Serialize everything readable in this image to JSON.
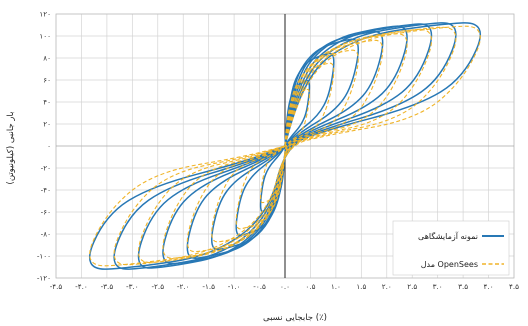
{
  "chart_data": {
    "type": "line",
    "title": "",
    "xlabel": "جابجایی نسبی (٪)",
    "ylabel": "بار جانبی (کیلونیوتن)",
    "xlim": [
      -4.5,
      4.5
    ],
    "ylim": [
      -120,
      120
    ],
    "x_ticks": [
      {
        "value": -4.5,
        "label": "-۴.۵"
      },
      {
        "value": -4.0,
        "label": "-۴.۰"
      },
      {
        "value": -3.5,
        "label": "-۳.۵"
      },
      {
        "value": -3.0,
        "label": "-۳.۰"
      },
      {
        "value": -2.5,
        "label": "-۲.۵"
      },
      {
        "value": -2.0,
        "label": "-۲.۰"
      },
      {
        "value": -1.5,
        "label": "-۱.۵"
      },
      {
        "value": -1.0,
        "label": "-۱.۰"
      },
      {
        "value": -0.5,
        "label": "-۰.۵"
      },
      {
        "value": 0.0,
        "label": "۰.۰"
      },
      {
        "value": 0.5,
        "label": "۰.۵"
      },
      {
        "value": 1.0,
        "label": "۱.۰"
      },
      {
        "value": 1.5,
        "label": "۱.۵"
      },
      {
        "value": 2.0,
        "label": "۲.۰"
      },
      {
        "value": 2.5,
        "label": "۲.۵"
      },
      {
        "value": 3.0,
        "label": "۳.۰"
      },
      {
        "value": 3.5,
        "label": "۳.۵"
      },
      {
        "value": 4.0,
        "label": "۴.۰"
      },
      {
        "value": 4.5,
        "label": "۴.۵"
      }
    ],
    "y_ticks": [
      {
        "value": 120,
        "label": "۱۲۰"
      },
      {
        "value": 100,
        "label": "۱۰۰"
      },
      {
        "value": 80,
        "label": "۸۰"
      },
      {
        "value": 60,
        "label": "۶۰"
      },
      {
        "value": 40,
        "label": "۴۰"
      },
      {
        "value": 20,
        "label": "۲۰"
      },
      {
        "value": 0,
        "label": "۰"
      },
      {
        "value": -20,
        "label": "-۲۰"
      },
      {
        "value": -40,
        "label": "-۴۰"
      },
      {
        "value": -60,
        "label": "-۶۰"
      },
      {
        "value": -80,
        "label": "-۸۰"
      },
      {
        "value": -100,
        "label": "-۱۰۰"
      },
      {
        "value": -120,
        "label": "-۱۲۰"
      }
    ],
    "grid": true,
    "legend_position": "bottom-right",
    "series": [
      {
        "name": "نمونه آزمایشگاهی",
        "color": "#2878b5",
        "style": "solid",
        "loops": [
          {
            "amp_pos": 0.5,
            "amp_neg": -0.5,
            "peak_pos": 60,
            "peak_neg": -60
          },
          {
            "amp_pos": 1.0,
            "amp_neg": -1.0,
            "peak_pos": 85,
            "peak_neg": -82
          },
          {
            "amp_pos": 1.5,
            "amp_neg": -1.5,
            "peak_pos": 98,
            "peak_neg": -95
          },
          {
            "amp_pos": 2.0,
            "amp_neg": -2.0,
            "peak_pos": 105,
            "peak_neg": -103
          },
          {
            "amp_pos": 2.5,
            "amp_neg": -2.5,
            "peak_pos": 110,
            "peak_neg": -108
          },
          {
            "amp_pos": 3.0,
            "amp_neg": -3.0,
            "peak_pos": 112,
            "peak_neg": -112
          },
          {
            "amp_pos": 3.5,
            "amp_neg": -3.5,
            "peak_pos": 113,
            "peak_neg": -113
          },
          {
            "amp_pos": 4.0,
            "amp_neg": -4.0,
            "peak_pos": 113,
            "peak_neg": -113
          }
        ]
      },
      {
        "name": "مدل OpenSees",
        "color": "#f0b429",
        "style": "dashed",
        "loops": [
          {
            "amp_pos": 0.5,
            "amp_neg": -0.5,
            "peak_pos": 52,
            "peak_neg": -52
          },
          {
            "amp_pos": 1.0,
            "amp_neg": -1.0,
            "peak_pos": 76,
            "peak_neg": -76
          },
          {
            "amp_pos": 1.5,
            "amp_neg": -1.5,
            "peak_pos": 88,
            "peak_neg": -88
          },
          {
            "amp_pos": 2.0,
            "amp_neg": -2.0,
            "peak_pos": 97,
            "peak_neg": -97
          },
          {
            "amp_pos": 2.5,
            "amp_neg": -2.5,
            "peak_pos": 103,
            "peak_neg": -103
          },
          {
            "amp_pos": 3.0,
            "amp_neg": -3.0,
            "peak_pos": 107,
            "peak_neg": -107
          },
          {
            "amp_pos": 3.5,
            "amp_neg": -3.5,
            "peak_pos": 109,
            "peak_neg": -109
          },
          {
            "amp_pos": 4.0,
            "amp_neg": -4.0,
            "peak_pos": 110,
            "peak_neg": -110
          }
        ]
      }
    ]
  }
}
